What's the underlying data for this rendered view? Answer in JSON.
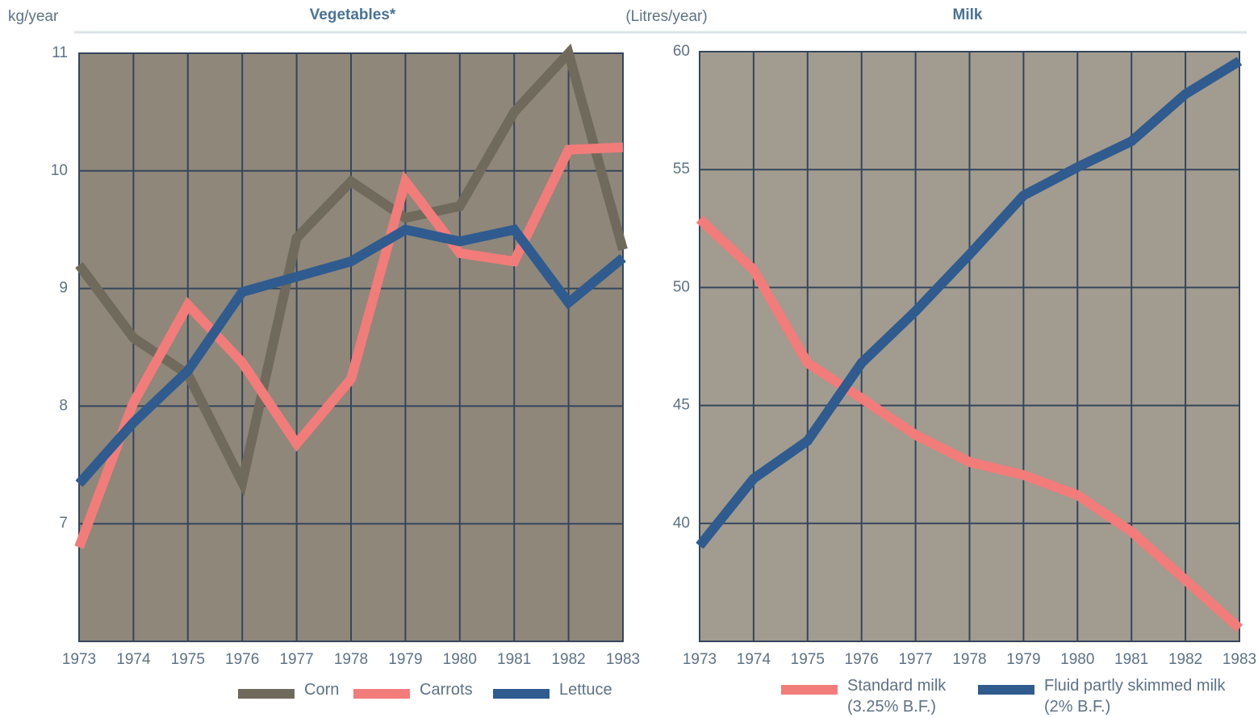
{
  "chart_data": [
    {
      "type": "line",
      "title": "Vegetables*",
      "y_label": "kg/year",
      "x": [
        1973,
        1974,
        1975,
        1976,
        1977,
        1978,
        1979,
        1980,
        1981,
        1982,
        1983
      ],
      "xlim": [
        1973,
        1983
      ],
      "xticks": [
        1973,
        1974,
        1975,
        1976,
        1977,
        1978,
        1979,
        1980,
        1981,
        1982,
        1983
      ],
      "ylim": [
        6,
        11
      ],
      "yticks": [
        7,
        8,
        9,
        10,
        11
      ],
      "grid": true,
      "series": [
        {
          "name": "Corn",
          "color": "#6f6a5c",
          "values": [
            9.2,
            8.58,
            8.27,
            7.35,
            9.43,
            9.91,
            9.6,
            9.7,
            10.5,
            11.0,
            9.33
          ]
        },
        {
          "name": "Carrots",
          "color": "#f27c7a",
          "values": [
            6.8,
            8.03,
            8.86,
            8.37,
            7.68,
            8.23,
            9.91,
            9.3,
            9.23,
            10.18,
            10.2
          ]
        },
        {
          "name": "Lettuce",
          "color": "#2f5b8e",
          "values": [
            7.34,
            7.86,
            8.3,
            8.97,
            9.1,
            9.23,
            9.5,
            9.4,
            9.5,
            8.88,
            9.26
          ]
        }
      ]
    },
    {
      "type": "line",
      "title": "Milk",
      "y_label": "(Litres/year)",
      "x": [
        1973,
        1974,
        1975,
        1976,
        1977,
        1978,
        1979,
        1980,
        1981,
        1982,
        1983
      ],
      "xlim": [
        1973,
        1983
      ],
      "xticks": [
        1973,
        1974,
        1975,
        1976,
        1977,
        1978,
        1979,
        1980,
        1981,
        1982,
        1983
      ],
      "ylim": [
        35,
        60
      ],
      "yticks": [
        40,
        45,
        50,
        55,
        60
      ],
      "grid": true,
      "series": [
        {
          "name": "Standard milk (3.25% B.F.)",
          "color": "#f27c7a",
          "values": [
            52.9,
            50.75,
            46.8,
            45.3,
            43.75,
            42.6,
            42.05,
            41.2,
            39.65,
            37.6,
            35.55
          ]
        },
        {
          "name": "Fluid partly skimmed milk (2% B.F.)",
          "color": "#2f5b8e",
          "values": [
            39.05,
            41.9,
            43.5,
            46.8,
            49.0,
            51.4,
            53.9,
            55.1,
            56.2,
            58.2,
            59.6
          ]
        }
      ]
    }
  ]
}
